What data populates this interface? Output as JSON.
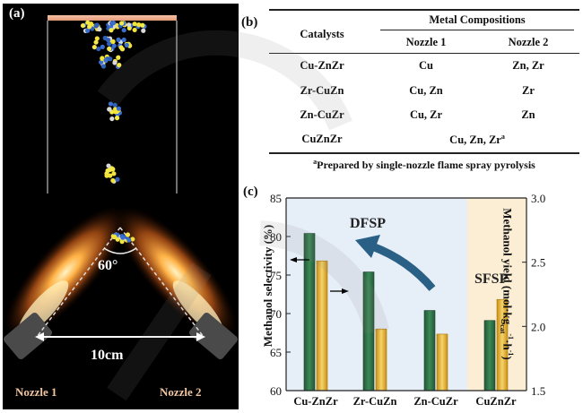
{
  "panel_a": {
    "label": "(a)",
    "angle": "60°",
    "distance": "10cm",
    "nozzle1": "Nozzle 1",
    "nozzle2": "Nozzle 2"
  },
  "panel_b": {
    "label": "(b)",
    "header_catalysts": "Catalysts",
    "header_group": "Metal Compositions",
    "header_n1": "Nozzle 1",
    "header_n2": "Nozzle 2",
    "rows": [
      {
        "catalyst": "Cu-ZnZr",
        "n1": "Cu",
        "n2": "Zn, Zr"
      },
      {
        "catalyst": "Zr-CuZn",
        "n1": "Cu, Zn",
        "n2": "Zr"
      },
      {
        "catalyst": "Zn-CuZr",
        "n1": "Cu, Zr",
        "n2": "Zn"
      },
      {
        "catalyst": "CuZnZr",
        "merged": "Cu, Zn, Zr",
        "sup": "a"
      }
    ],
    "footnote_sup": "a",
    "footnote": "Prepared by single-nozzle flame spray pyrolysis"
  },
  "panel_c": {
    "label": "(c)",
    "annotation_dfsp": "DFSP",
    "annotation_sfsp": "SFSP",
    "colors": {
      "selectivity": "#2e6b3e",
      "yield": "#e8b431",
      "dfsp_bg": "#e6eef8",
      "sfsp_bg": "#fbeed5"
    }
  },
  "chart_data": {
    "type": "bar",
    "categories": [
      "Cu-ZnZr",
      "Zr-CuZn",
      "Zn-CuZr",
      "CuZnZr"
    ],
    "series": [
      {
        "name": "Methanol selectivity",
        "axis": "left",
        "values": [
          80.4,
          75.4,
          70.4,
          69.1
        ]
      },
      {
        "name": "Methanol yield",
        "axis": "right",
        "values": [
          2.51,
          1.98,
          1.94,
          2.21
        ]
      }
    ],
    "ylabel": "Methanol selectivity (%)",
    "ylabel2": "Methanol yield (mol·kg",
    "ylabel2_sub": "cat",
    "ylabel2_sup1": "-1",
    "ylabel2_mid": "·h",
    "ylabel2_sup2": "-1",
    "ylabel2_end": ")",
    "ylim": [
      60,
      85
    ],
    "ylim2": [
      1.5,
      3.0
    ],
    "yticks": [
      "60",
      "65",
      "70",
      "75",
      "80",
      "85"
    ],
    "yticks2": [
      "1.5",
      "2.0",
      "2.5",
      "3.0"
    ]
  }
}
